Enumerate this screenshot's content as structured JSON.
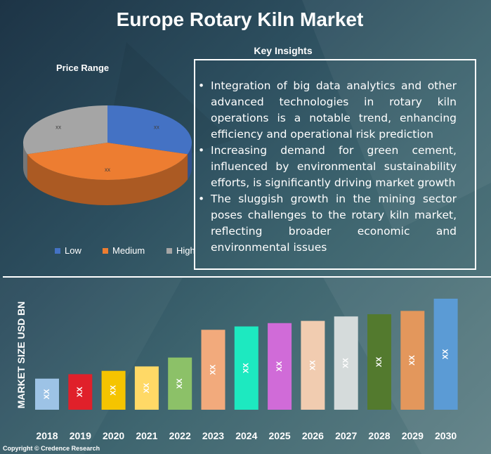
{
  "header": {
    "title": "Europe Rotary Kiln Market"
  },
  "pie": {
    "title": "Price Range",
    "legend": [
      {
        "label": "Low",
        "color": "#4472c4"
      },
      {
        "label": "Medium",
        "color": "#ed7d31"
      },
      {
        "label": "High",
        "color": "#a5a5a5"
      }
    ]
  },
  "insights": {
    "title": "Key Insights",
    "items": [
      "Integration of big data analytics and other advanced technologies in rotary kiln operations is a notable trend, enhancing efficiency and operational risk prediction",
      "Increasing demand for green cement, influenced by environmental sustainability efforts, is significantly driving market growth",
      "The sluggish growth in the mining sector poses challenges to the rotary kiln market, reflecting broader economic and environmental issues"
    ]
  },
  "bar": {
    "ylabel": "MARKET SIZE USD BN"
  },
  "footer": {
    "copyright": "Copyright © Credence Research"
  },
  "chart_data": [
    {
      "type": "pie",
      "title": "Price Range",
      "categories": [
        "Low",
        "Medium",
        "High"
      ],
      "values": [
        30,
        40,
        30
      ],
      "labels": [
        "xx",
        "xx",
        "xx"
      ],
      "colors": [
        "#4472c4",
        "#ed7d31",
        "#a5a5a5"
      ],
      "legend": "bottom"
    },
    {
      "type": "bar",
      "categories": [
        "2018",
        "2019",
        "2020",
        "2021",
        "2022",
        "2023",
        "2024",
        "2025",
        "2026",
        "2027",
        "2028",
        "2029",
        "2030"
      ],
      "values": [
        28,
        32,
        35,
        39,
        47,
        72,
        75,
        78,
        80,
        84,
        86,
        89,
        100
      ],
      "data_labels": [
        "XX",
        "XX",
        "XX",
        "XX",
        "XX",
        "XX",
        "XX",
        "XX",
        "XX",
        "XX",
        "XX",
        "XX",
        "XX"
      ],
      "colors": [
        "#9dc3e6",
        "#e0202a",
        "#f5c400",
        "#ffd966",
        "#8cc168",
        "#f2aa7c",
        "#1de9c0",
        "#d06bd8",
        "#f1ccb0",
        "#d5dbdb",
        "#537a2e",
        "#e3975c",
        "#5b9bd5"
      ],
      "ylabel": "MARKET SIZE USD BN",
      "ylim": [
        0,
        100
      ]
    }
  ]
}
